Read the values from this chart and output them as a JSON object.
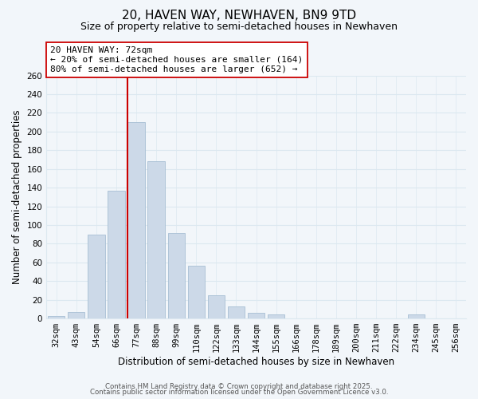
{
  "title": "20, HAVEN WAY, NEWHAVEN, BN9 9TD",
  "subtitle": "Size of property relative to semi-detached houses in Newhaven",
  "xlabel": "Distribution of semi-detached houses by size in Newhaven",
  "ylabel": "Number of semi-detached properties",
  "categories": [
    "32sqm",
    "43sqm",
    "54sqm",
    "66sqm",
    "77sqm",
    "88sqm",
    "99sqm",
    "110sqm",
    "122sqm",
    "133sqm",
    "144sqm",
    "155sqm",
    "166sqm",
    "178sqm",
    "189sqm",
    "200sqm",
    "211sqm",
    "222sqm",
    "234sqm",
    "245sqm",
    "256sqm"
  ],
  "values": [
    3,
    7,
    90,
    137,
    210,
    168,
    91,
    56,
    25,
    13,
    6,
    4,
    0,
    0,
    0,
    0,
    0,
    0,
    4,
    0,
    0
  ],
  "bar_color": "#ccd9e8",
  "bar_edge_color": "#a8bfd4",
  "highlight_line_color": "#cc0000",
  "annotation_title": "20 HAVEN WAY: 72sqm",
  "annotation_line1": "← 20% of semi-detached houses are smaller (164)",
  "annotation_line2": "80% of semi-detached houses are larger (652) →",
  "annotation_box_color": "#ffffff",
  "annotation_box_edge": "#cc0000",
  "ylim": [
    0,
    260
  ],
  "yticks": [
    0,
    20,
    40,
    60,
    80,
    100,
    120,
    140,
    160,
    180,
    200,
    220,
    240,
    260
  ],
  "footer1": "Contains HM Land Registry data © Crown copyright and database right 2025.",
  "footer2": "Contains public sector information licensed under the Open Government Licence v3.0.",
  "bg_color": "#f2f6fa",
  "grid_color": "#dce8f0",
  "title_fontsize": 11,
  "subtitle_fontsize": 9,
  "tick_fontsize": 7.5
}
